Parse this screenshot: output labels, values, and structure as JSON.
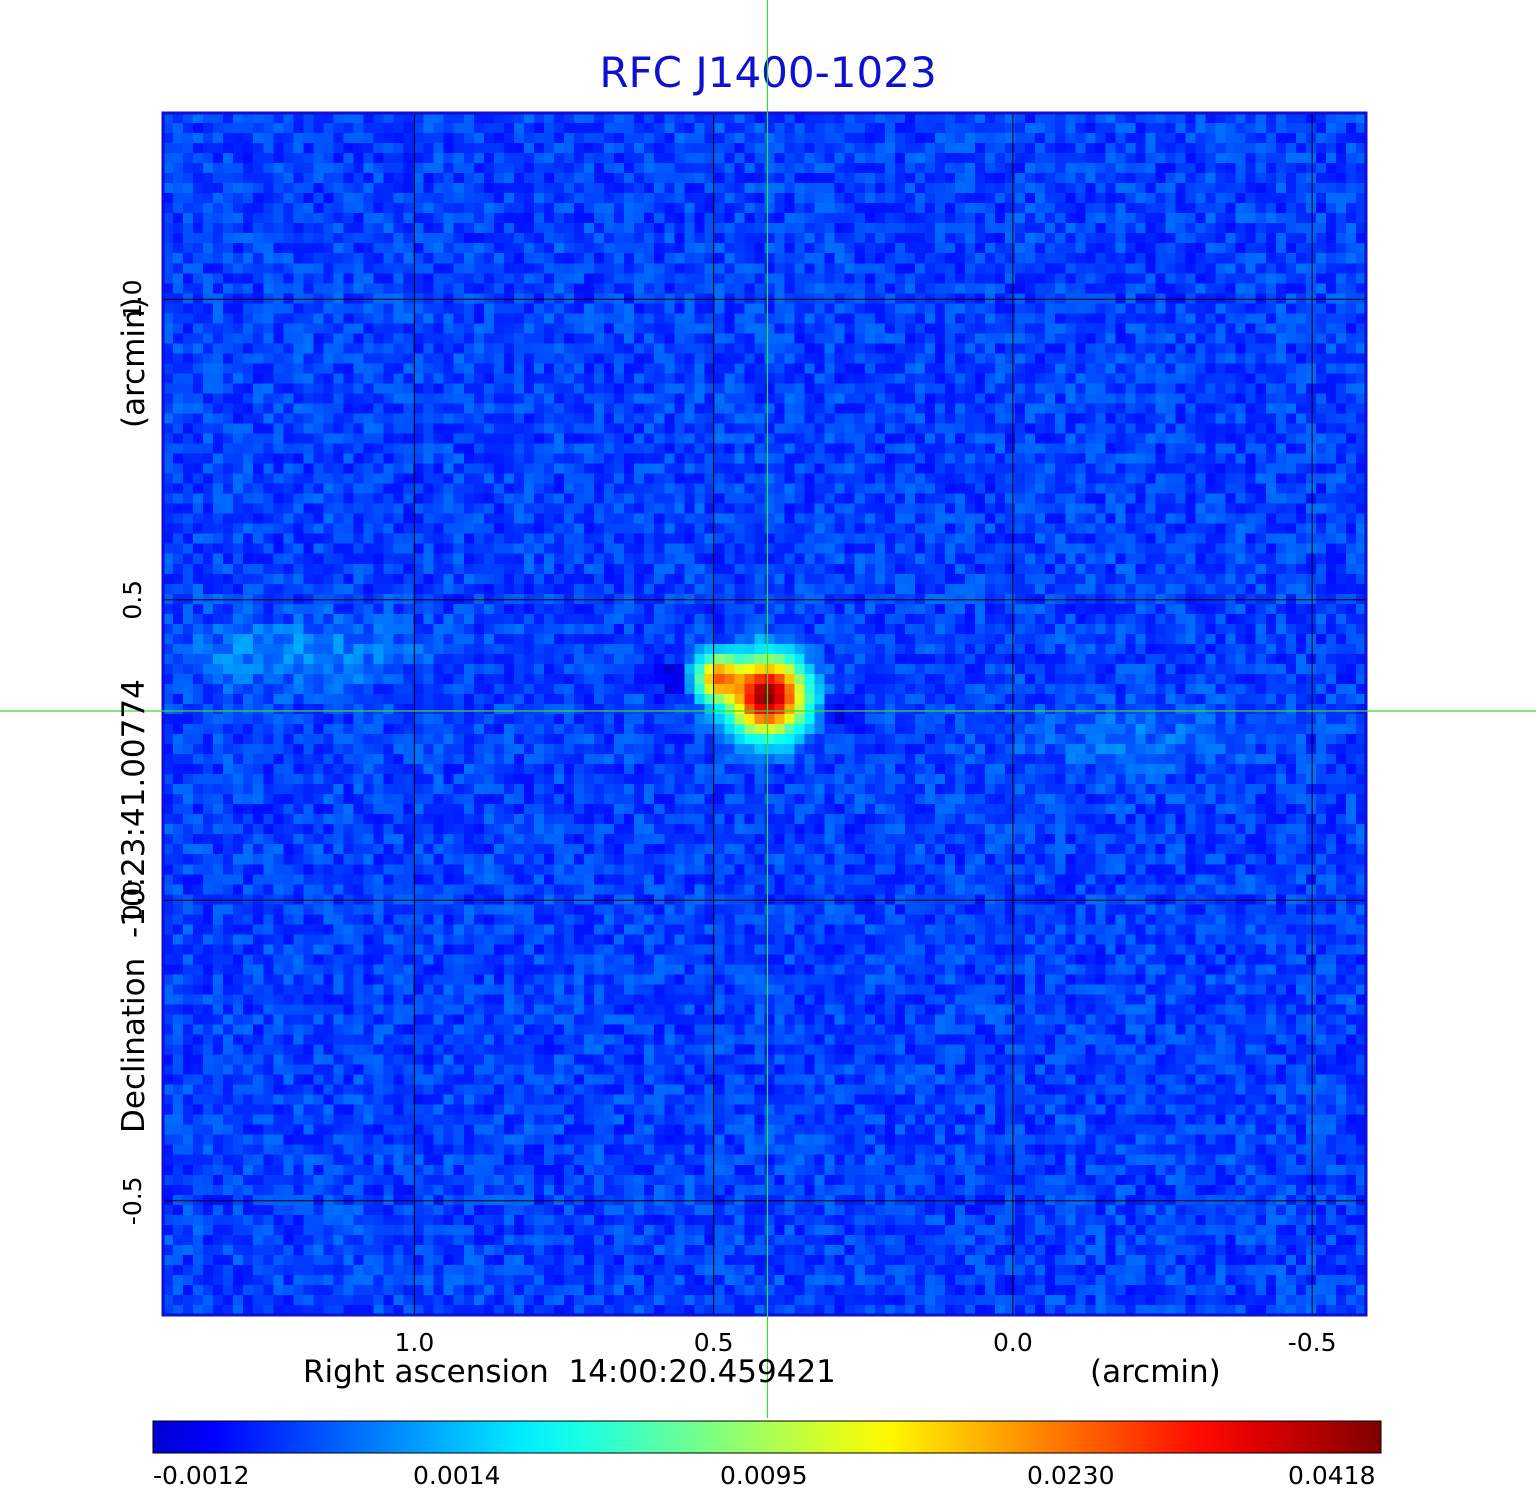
{
  "chart_data": {
    "type": "heatmap",
    "title": "RFC J1400-1023",
    "xlabel": "Right ascension  14:00:20.459421",
    "xunit": "(arcmin)",
    "ylabel": "Declination  -10:23:41.00774",
    "yunit": "(arcmin)",
    "x_ticks": [
      1.0,
      0.5,
      0.0,
      -0.5
    ],
    "x_tick_labels": [
      "1.0",
      "0.5",
      "0.0",
      "-0.5"
    ],
    "y_ticks": [
      1.0,
      0.5,
      0.0,
      -0.5
    ],
    "y_tick_labels": [
      "1.0",
      "0.5",
      "0.0",
      "-0.5"
    ],
    "xlim": [
      1.42,
      -0.59
    ],
    "ylim": [
      -0.69,
      1.31
    ],
    "grid": true,
    "crosshair": {
      "x": 0.41,
      "y": 0.315
    },
    "colormap": "jet",
    "colorbar_ticks": [
      "-0.0012",
      "0.0014",
      "0.0095",
      "0.0230",
      "0.0418"
    ],
    "colorbar_range": [
      -0.0012,
      0.0418
    ],
    "background_level": 0.0,
    "sources": [
      {
        "x": 0.41,
        "y": 0.34,
        "peak": 0.0418,
        "width": 0.035
      },
      {
        "x": 0.49,
        "y": 0.37,
        "peak": 0.022,
        "width": 0.022
      }
    ],
    "diffuse_features": [
      {
        "x": 1.2,
        "y": 0.41,
        "level": 0.0009
      },
      {
        "x": -0.2,
        "y": 0.27,
        "level": 0.0005
      }
    ],
    "negative_features": [
      {
        "x": 0.57,
        "y": 0.37,
        "level": -0.0012
      },
      {
        "x": 0.28,
        "y": 0.31,
        "level": -0.0011
      }
    ]
  },
  "colors": {
    "title": "#1010d0",
    "grid": "#000000",
    "crosshair": "#33dd33",
    "frame": "#1010d0"
  }
}
